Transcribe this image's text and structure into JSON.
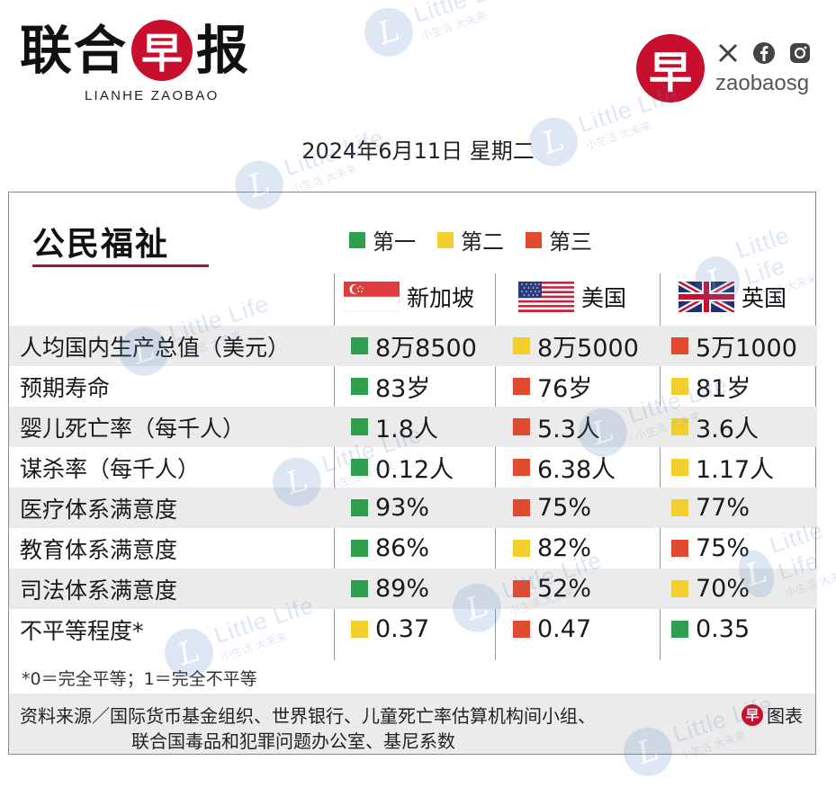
{
  "header": {
    "brand_chars": [
      "联",
      "合",
      "早",
      "报"
    ],
    "brand_latin": "LIANHE ZAOBAO",
    "social_logo_char": "早",
    "social_icons": [
      "x-icon",
      "facebook-icon",
      "instagram-icon"
    ],
    "social_handle": "zaobaosg",
    "date": "2024年6月11日 星期二"
  },
  "panel": {
    "title": "公民福祉",
    "legend": [
      {
        "label": "第一",
        "color": "#2e9e4f"
      },
      {
        "label": "第二",
        "color": "#f2cf2e"
      },
      {
        "label": "第三",
        "color": "#e04a2f"
      }
    ],
    "countries": [
      {
        "name": "新加坡",
        "flag": "singapore-flag"
      },
      {
        "name": "美国",
        "flag": "usa-flag"
      },
      {
        "name": "英国",
        "flag": "uk-flag"
      }
    ],
    "rows": [
      {
        "label": "人均国内生产总值（美元）",
        "values": [
          "8万8500",
          "8万5000",
          "5万1000"
        ],
        "ranks": [
          1,
          2,
          3
        ]
      },
      {
        "label": "预期寿命",
        "values": [
          "83岁",
          "76岁",
          "81岁"
        ],
        "ranks": [
          1,
          3,
          2
        ]
      },
      {
        "label": "婴儿死亡率（每千人）",
        "values": [
          "1.8人",
          "5.3人",
          "3.6人"
        ],
        "ranks": [
          1,
          3,
          2
        ]
      },
      {
        "label": "谋杀率（每千人）",
        "values": [
          "0.12人",
          "6.38人",
          "1.17人"
        ],
        "ranks": [
          1,
          3,
          2
        ]
      },
      {
        "label": "医疗体系满意度",
        "values": [
          "93%",
          "75%",
          "77%"
        ],
        "ranks": [
          1,
          3,
          2
        ]
      },
      {
        "label": "教育体系满意度",
        "values": [
          "86%",
          "82%",
          "75%"
        ],
        "ranks": [
          1,
          2,
          3
        ]
      },
      {
        "label": "司法体系满意度",
        "values": [
          "89%",
          "52%",
          "70%"
        ],
        "ranks": [
          1,
          3,
          2
        ]
      },
      {
        "label": "不平等程度*",
        "values": [
          "0.37",
          "0.47",
          "0.35"
        ],
        "ranks": [
          2,
          3,
          1
        ]
      }
    ],
    "footnote": "*0＝完全平等；1＝完全不平等",
    "source_line1": "资料来源／国际货币基金组织、世界银行、儿童死亡率估算机构间小组、",
    "source_line2": "联合国毒品和犯罪问题办公室、基尼系数",
    "chart_tag_logo": "早",
    "chart_tag": "图表"
  },
  "watermark": {
    "logo_char": "L",
    "text": "Little Life",
    "subtext": "小生活 大未来"
  }
}
